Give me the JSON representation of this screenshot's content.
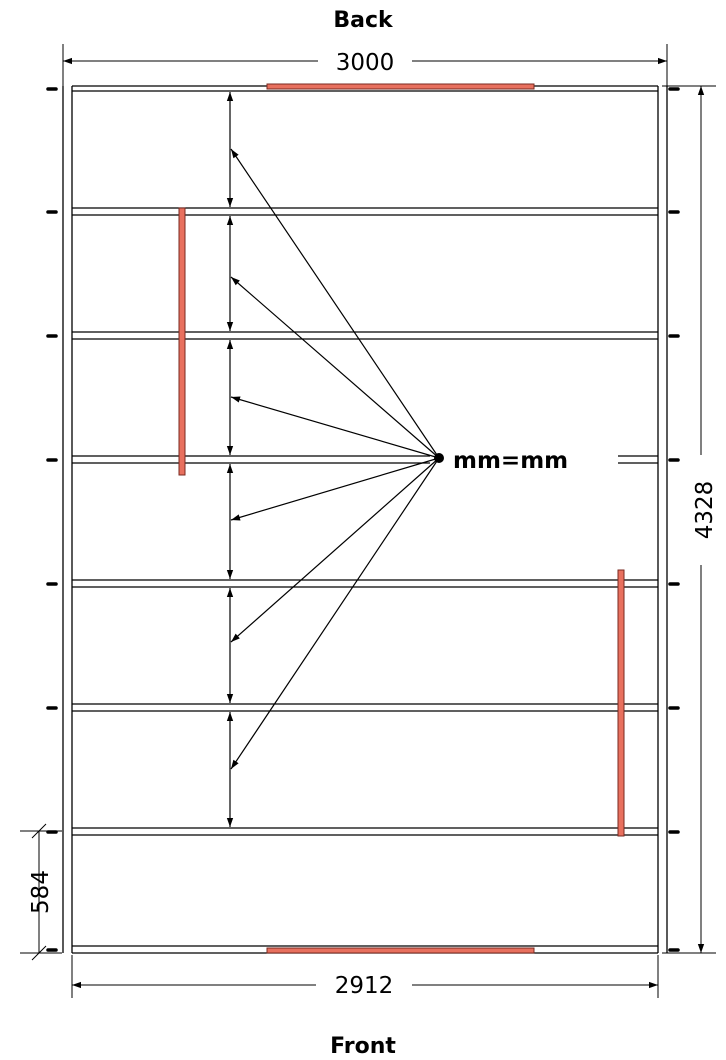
{
  "labels": {
    "top": "Back",
    "bottom": "Front",
    "width_top": "3000",
    "width_bottom": "2912",
    "depth": "4328",
    "last_spacing": "584",
    "equal_note": "mm=mm"
  },
  "colors": {
    "line": "#000000",
    "board": "#e8705e",
    "board_stroke": "#7a2a20"
  }
}
